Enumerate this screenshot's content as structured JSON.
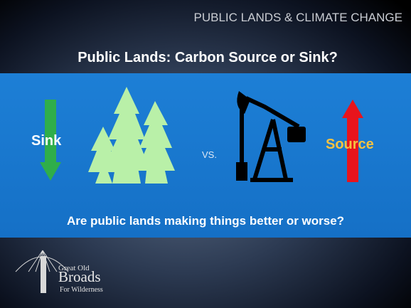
{
  "header": {
    "banner": "PUBLIC LANDS & CLIMATE CHANGE"
  },
  "slide": {
    "title": "Public Lands: Carbon Source or Sink?",
    "sink_label": "Sink",
    "versus": "VS.",
    "source_label": "Source",
    "question": "Are public lands making things better or worse?"
  },
  "logo": {
    "line1": "Great Old",
    "line2": "Broads",
    "line3": "For Wilderness"
  }
}
